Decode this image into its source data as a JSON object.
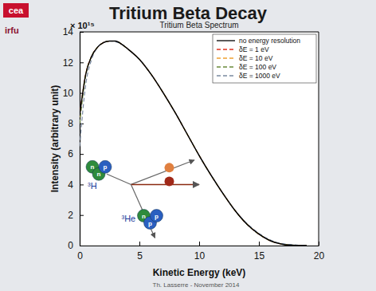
{
  "slide": {
    "title": "Tritium Beta Decay",
    "logos": [
      "cea",
      "irfu"
    ],
    "footer": "Th. Lasserre - November 2014"
  },
  "chart_data": {
    "type": "line",
    "title": "Tritium Beta Spectrum",
    "x_label": "Kinetic Energy (keV)",
    "y_label": "Intensity (arbitrary unit)",
    "y_multiplier": "× 10¹⁵",
    "x": [
      0,
      0.5,
      1,
      1.5,
      2,
      2.5,
      3,
      3.5,
      4,
      5,
      6,
      7,
      8,
      9,
      10,
      11,
      12,
      13,
      14,
      15,
      16,
      17,
      18,
      18.6,
      19
    ],
    "series": [
      {
        "name": "no energy resolution",
        "color": "#000000",
        "line_style": "solid",
        "values": [
          8.5,
          11.2,
          12.4,
          13.0,
          13.3,
          13.4,
          13.4,
          13.2,
          12.9,
          12.2,
          11.2,
          10.0,
          8.7,
          7.3,
          5.9,
          4.6,
          3.4,
          2.3,
          1.4,
          0.75,
          0.3,
          0.08,
          0.01,
          0,
          0
        ]
      },
      {
        "name": "δE = 1 eV",
        "color": "#e0301e",
        "line_style": "dashed",
        "values": [
          8.5,
          11.2,
          12.4,
          13.0,
          13.3,
          13.4,
          13.4,
          13.2,
          12.9,
          12.2,
          11.2,
          10.0,
          8.7,
          7.3,
          5.9,
          4.6,
          3.4,
          2.3,
          1.4,
          0.75,
          0.3,
          0.08,
          0.01,
          0,
          0
        ]
      },
      {
        "name": "δE = 10 eV",
        "color": "#f0a030",
        "line_style": "dashed",
        "values": [
          8.4,
          11.2,
          12.4,
          13.0,
          13.3,
          13.4,
          13.4,
          13.2,
          12.9,
          12.2,
          11.2,
          10.0,
          8.7,
          7.3,
          5.9,
          4.6,
          3.4,
          2.3,
          1.4,
          0.75,
          0.3,
          0.08,
          0.01,
          0,
          0
        ]
      },
      {
        "name": "δE = 100 eV",
        "color": "#6a8a3a",
        "line_style": "dashed",
        "values": [
          8.0,
          11.1,
          12.4,
          13.0,
          13.3,
          13.4,
          13.4,
          13.2,
          12.9,
          12.2,
          11.2,
          10.0,
          8.7,
          7.3,
          5.9,
          4.6,
          3.4,
          2.3,
          1.4,
          0.75,
          0.3,
          0.09,
          0.02,
          0,
          0
        ]
      },
      {
        "name": "δE = 1000 eV",
        "color": "#7a8aa0",
        "line_style": "dashed",
        "values": [
          6.5,
          10.5,
          12.2,
          13.0,
          13.3,
          13.4,
          13.35,
          13.2,
          12.9,
          12.2,
          11.2,
          10.0,
          8.7,
          7.3,
          5.9,
          4.6,
          3.4,
          2.3,
          1.45,
          0.8,
          0.35,
          0.12,
          0.05,
          0.01,
          0
        ]
      }
    ],
    "xlim": [
      0,
      20
    ],
    "xticks": [
      0,
      5,
      10,
      15,
      20
    ],
    "ylim": [
      0,
      14
    ],
    "yticks": [
      0,
      2,
      4,
      6,
      8,
      10,
      12,
      14
    ],
    "legend": "upper right",
    "illustration": {
      "parent_label": "³H",
      "daughter_label": "³He",
      "parent_nucleons": [
        "n",
        "n",
        "p"
      ],
      "daughter_nucleons": [
        "n",
        "p",
        "p"
      ]
    }
  }
}
